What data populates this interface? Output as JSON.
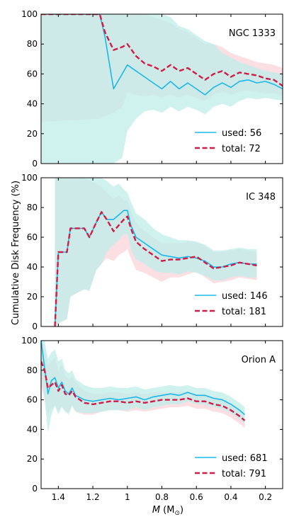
{
  "figure": {
    "ylabel": "Cumulative Disk Frequency (%)",
    "xlabel_main": "M",
    "xlabel_units": "(M",
    "xlabel_sub": "⊙",
    "xlabel_close": ")"
  },
  "colors": {
    "used": "#1ab8ea",
    "total": "#d21b45",
    "used_band": "#bfeeea",
    "total_band": "#fad4da"
  },
  "chart_data": [
    {
      "type": "line",
      "title": "NGC 1333",
      "xlim": [
        1.5,
        0.1
      ],
      "ylim": [
        0,
        100
      ],
      "xticks": [
        1.4,
        1.2,
        1.0,
        0.8,
        0.6,
        0.4,
        0.2
      ],
      "yticks": [
        0,
        20,
        40,
        60,
        80,
        100
      ],
      "legend_position": "lower-right",
      "series": [
        {
          "name": "used: 56",
          "style": "solid",
          "x": [
            1.5,
            1.16,
            1.13,
            1.08,
            1.03,
            1.0,
            0.95,
            0.9,
            0.85,
            0.8,
            0.75,
            0.7,
            0.65,
            0.6,
            0.55,
            0.5,
            0.45,
            0.4,
            0.35,
            0.3,
            0.25,
            0.2,
            0.15,
            0.1
          ],
          "y": [
            100,
            100,
            85,
            50,
            60,
            66,
            62,
            58,
            54,
            50,
            55,
            50,
            54,
            50,
            46,
            51,
            54,
            51,
            55,
            56,
            54,
            55,
            53,
            50
          ]
        },
        {
          "name": "total: 72",
          "style": "dashed",
          "x": [
            1.5,
            1.16,
            1.13,
            1.08,
            1.03,
            1.0,
            0.95,
            0.9,
            0.85,
            0.8,
            0.75,
            0.7,
            0.65,
            0.6,
            0.55,
            0.5,
            0.45,
            0.4,
            0.35,
            0.3,
            0.25,
            0.2,
            0.15,
            0.1
          ],
          "y": [
            100,
            100,
            88,
            76,
            78,
            80,
            72,
            67,
            65,
            62,
            66,
            62,
            64,
            60,
            56,
            60,
            62,
            58,
            61,
            60,
            59,
            57,
            56,
            52
          ]
        }
      ],
      "bands": {
        "used_upper": [
          100,
          100,
          100,
          100,
          100,
          100,
          100,
          100,
          100,
          100,
          98,
          92,
          90,
          86,
          82,
          80,
          74,
          71,
          68,
          66,
          64,
          62,
          61,
          60
        ],
        "used_lower": [
          0,
          0,
          0,
          0,
          4,
          22,
          30,
          35,
          36,
          34,
          38,
          35,
          38,
          36,
          33,
          38,
          40,
          38,
          42,
          44,
          43,
          44,
          43,
          42
        ],
        "total_upper": [
          100,
          100,
          100,
          100,
          100,
          100,
          100,
          100,
          98,
          96,
          94,
          90,
          88,
          84,
          80,
          80,
          78,
          74,
          72,
          70,
          68,
          67,
          66,
          64
        ],
        "total_lower": [
          28,
          30,
          32,
          34,
          38,
          48,
          46,
          45,
          46,
          44,
          46,
          44,
          46,
          44,
          42,
          46,
          48,
          46,
          48,
          49,
          48,
          47,
          47,
          45
        ]
      }
    },
    {
      "type": "line",
      "title": "IC 348",
      "xlim": [
        1.5,
        0.1
      ],
      "ylim": [
        0,
        100
      ],
      "xticks": [
        1.4,
        1.2,
        1.0,
        0.8,
        0.6,
        0.4,
        0.2
      ],
      "yticks": [
        0,
        20,
        40,
        60,
        80,
        100
      ],
      "legend_position": "lower-right",
      "series": [
        {
          "name": "used: 146",
          "style": "solid",
          "x": [
            1.42,
            1.4,
            1.35,
            1.33,
            1.3,
            1.25,
            1.22,
            1.18,
            1.15,
            1.12,
            1.08,
            1.05,
            1.02,
            1.0,
            0.98,
            0.95,
            0.9,
            0.85,
            0.8,
            0.75,
            0.7,
            0.65,
            0.6,
            0.55,
            0.5,
            0.45,
            0.4,
            0.35,
            0.3,
            0.25
          ],
          "y": [
            0,
            50,
            50,
            66,
            66,
            66,
            60,
            70,
            77,
            72,
            72,
            75,
            78,
            78,
            68,
            60,
            56,
            52,
            48,
            47,
            46,
            47,
            46,
            44,
            40,
            40,
            42,
            43,
            42,
            42
          ]
        },
        {
          "name": "total: 181",
          "style": "dashed",
          "x": [
            1.42,
            1.4,
            1.35,
            1.33,
            1.3,
            1.25,
            1.22,
            1.18,
            1.15,
            1.12,
            1.08,
            1.05,
            1.02,
            1.0,
            0.98,
            0.95,
            0.9,
            0.85,
            0.8,
            0.75,
            0.7,
            0.65,
            0.6,
            0.55,
            0.5,
            0.45,
            0.4,
            0.35,
            0.3,
            0.25
          ],
          "y": [
            0,
            50,
            50,
            66,
            66,
            66,
            60,
            70,
            77,
            72,
            64,
            68,
            72,
            74,
            66,
            57,
            52,
            48,
            44,
            45,
            45,
            46,
            47,
            43,
            39,
            40,
            41,
            43,
            42,
            41
          ]
        }
      ],
      "bands": {
        "used_upper": [
          100,
          100,
          100,
          100,
          100,
          100,
          100,
          100,
          100,
          98,
          94,
          96,
          92,
          90,
          84,
          76,
          72,
          66,
          62,
          60,
          58,
          58,
          57,
          55,
          51,
          51,
          52,
          53,
          52,
          52
        ],
        "used_lower": [
          0,
          2,
          5,
          20,
          22,
          25,
          24,
          38,
          42,
          50,
          55,
          58,
          62,
          62,
          52,
          45,
          42,
          38,
          36,
          36,
          35,
          37,
          36,
          34,
          31,
          31,
          33,
          34,
          33,
          33
        ],
        "total_upper": [
          100,
          100,
          100,
          100,
          100,
          100,
          98,
          96,
          94,
          90,
          86,
          88,
          85,
          85,
          78,
          70,
          64,
          60,
          56,
          56,
          56,
          57,
          57,
          54,
          50,
          50,
          51,
          52,
          51,
          50
        ],
        "total_lower": [
          0,
          2,
          5,
          20,
          22,
          25,
          24,
          38,
          42,
          46,
          44,
          48,
          50,
          52,
          46,
          38,
          36,
          33,
          30,
          33,
          33,
          35,
          37,
          33,
          29,
          30,
          31,
          33,
          32,
          31
        ]
      }
    },
    {
      "type": "line",
      "title": "Orion A",
      "xlim": [
        1.5,
        0.1
      ],
      "ylim": [
        0,
        100
      ],
      "xticks": [
        1.4,
        1.2,
        1.0,
        0.8,
        0.6,
        0.4,
        0.2
      ],
      "yticks": [
        0,
        20,
        40,
        60,
        80,
        100
      ],
      "xlabel": "M (M⊙)",
      "legend_position": "lower-right",
      "series": [
        {
          "name": "used: 681",
          "style": "solid",
          "x": [
            1.5,
            1.48,
            1.46,
            1.44,
            1.42,
            1.4,
            1.38,
            1.36,
            1.34,
            1.32,
            1.3,
            1.25,
            1.2,
            1.15,
            1.1,
            1.05,
            1.0,
            0.95,
            0.9,
            0.85,
            0.8,
            0.75,
            0.7,
            0.65,
            0.6,
            0.55,
            0.5,
            0.45,
            0.4,
            0.35,
            0.32
          ],
          "y": [
            100,
            82,
            64,
            73,
            75,
            68,
            72,
            66,
            64,
            68,
            63,
            60,
            59,
            60,
            61,
            60,
            61,
            62,
            60,
            62,
            63,
            64,
            63,
            65,
            63,
            63,
            61,
            60,
            57,
            53,
            50
          ]
        },
        {
          "name": "total: 791",
          "style": "dashed",
          "x": [
            1.5,
            1.48,
            1.46,
            1.44,
            1.42,
            1.4,
            1.38,
            1.36,
            1.34,
            1.32,
            1.3,
            1.25,
            1.2,
            1.15,
            1.1,
            1.05,
            1.0,
            0.95,
            0.9,
            0.85,
            0.8,
            0.75,
            0.7,
            0.65,
            0.6,
            0.55,
            0.5,
            0.45,
            0.4,
            0.35,
            0.32
          ],
          "y": [
            86,
            80,
            68,
            70,
            72,
            66,
            70,
            64,
            63,
            66,
            62,
            58,
            57,
            58,
            59,
            59,
            58,
            59,
            58,
            59,
            60,
            60,
            60,
            61,
            59,
            59,
            57,
            56,
            53,
            49,
            46
          ]
        }
      ],
      "bands": {
        "used_upper": [
          100,
          100,
          88,
          92,
          94,
          86,
          88,
          80,
          78,
          80,
          74,
          70,
          68,
          68,
          69,
          68,
          68,
          69,
          67,
          68,
          69,
          70,
          69,
          70,
          68,
          68,
          66,
          65,
          62,
          58,
          55
        ],
        "used_lower": [
          80,
          60,
          38,
          50,
          56,
          50,
          55,
          52,
          50,
          56,
          52,
          51,
          51,
          52,
          53,
          53,
          53,
          55,
          53,
          55,
          56,
          57,
          57,
          59,
          57,
          57,
          55,
          54,
          51,
          47,
          44
        ],
        "total_upper": [
          100,
          96,
          84,
          86,
          88,
          80,
          84,
          76,
          74,
          76,
          72,
          66,
          64,
          64,
          65,
          65,
          64,
          65,
          64,
          65,
          65,
          65,
          65,
          66,
          64,
          64,
          62,
          61,
          58,
          54,
          51
        ],
        "total_lower": [
          70,
          60,
          50,
          54,
          56,
          52,
          56,
          52,
          52,
          56,
          52,
          50,
          50,
          52,
          53,
          53,
          52,
          53,
          52,
          53,
          54,
          55,
          55,
          56,
          54,
          54,
          52,
          51,
          48,
          44,
          41
        ]
      }
    }
  ]
}
